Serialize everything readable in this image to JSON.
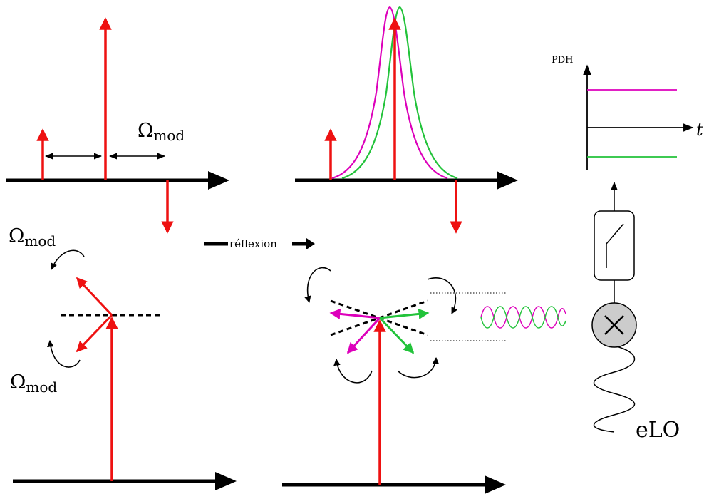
{
  "labels": {
    "omega_symbol": "Ω",
    "omega_subscript": "mod",
    "reflexion": "réflexion",
    "pdh_axis": "PDH",
    "time_axis": "t",
    "local_oscillator": "eLO"
  },
  "colors": {
    "carrier": "#ee1111",
    "sideband_magenta": "#dd00bb",
    "sideband_green": "#22c33a",
    "axis": "#000000",
    "mixer_fill": "#cccccc"
  },
  "icons": {
    "mixer": "mixer-cross-icon",
    "filter": "lowpass-filter-icon",
    "oscillator": "sine-wave-icon"
  }
}
